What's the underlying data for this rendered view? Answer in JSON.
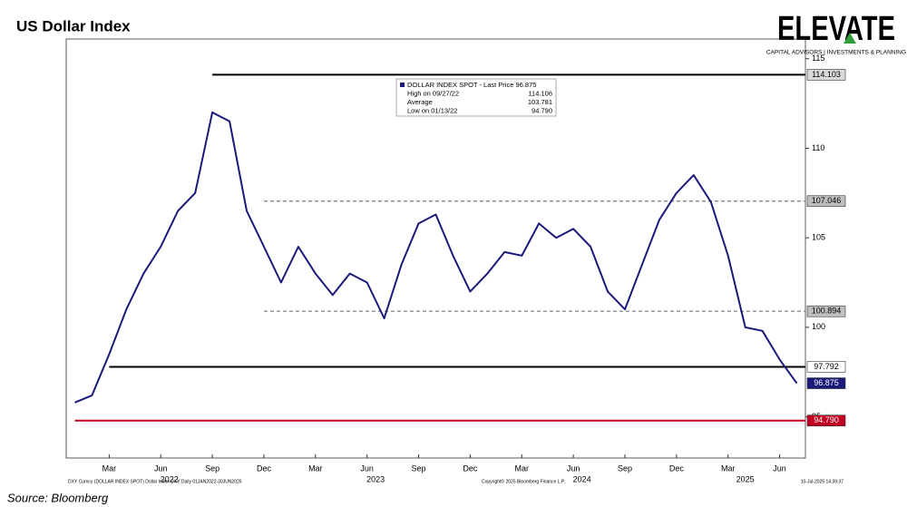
{
  "chart_data": {
    "type": "line",
    "title": "US Dollar Index",
    "source": "Source: Bloomberg",
    "logo": {
      "name": "ELEVATE",
      "tagline": "CAPITAL ADVISORS | INVESTMENTS & PLANNING"
    },
    "footer": {
      "left": "DXY Curncy (DOLLAR INDEX SPOT) Dollar Index DXY  Daily 01JAN2022-30JUN2025",
      "center": "Copyright© 2025 Bloomberg Finance L.P.",
      "right": "10-Jul-2025 14:39:37"
    },
    "legend_box": {
      "rows": [
        {
          "label": "DOLLAR INDEX SPOT - Last Price 96.875"
        },
        {
          "label": "High on 09/27/22",
          "value": "114.106"
        },
        {
          "label": "Average",
          "value": "103.781"
        },
        {
          "label": "Low on 01/13/22",
          "value": "94.790"
        }
      ]
    },
    "x": [
      "2022-01",
      "2022-02",
      "2022-03",
      "2022-04",
      "2022-05",
      "2022-06",
      "2022-07",
      "2022-08",
      "2022-09",
      "2022-10",
      "2022-11",
      "2022-12",
      "2023-01",
      "2023-02",
      "2023-03",
      "2023-04",
      "2023-05",
      "2023-06",
      "2023-07",
      "2023-08",
      "2023-09",
      "2023-10",
      "2023-11",
      "2023-12",
      "2024-01",
      "2024-02",
      "2024-03",
      "2024-04",
      "2024-05",
      "2024-06",
      "2024-07",
      "2024-08",
      "2024-09",
      "2024-10",
      "2024-11",
      "2024-12",
      "2025-01",
      "2025-02",
      "2025-03",
      "2025-04",
      "2025-05",
      "2025-06",
      "2025-07"
    ],
    "series": [
      {
        "name": "DOLLAR INDEX SPOT",
        "color": "#1a1a7a",
        "values": [
          95.8,
          96.2,
          98.5,
          101,
          103,
          104.5,
          106.5,
          107.5,
          112,
          111.5,
          106.5,
          104.5,
          102.5,
          104.5,
          103,
          101.8,
          103,
          102.5,
          100.5,
          103.5,
          105.8,
          106.3,
          104,
          102,
          103,
          104.2,
          104,
          105.8,
          105,
          105.5,
          104.5,
          102,
          101,
          103.5,
          106,
          107.5,
          108.5,
          107,
          104,
          100,
          99.8,
          98.2,
          96.875
        ]
      }
    ],
    "ylim": [
      92.7,
      116.1
    ],
    "yticks": [
      95,
      100,
      105,
      110,
      115
    ],
    "xtick_labels": [
      {
        "x": "2022-03",
        "label": "Mar"
      },
      {
        "x": "2022-06",
        "label": "Jun"
      },
      {
        "x": "2022-09",
        "label": "Sep"
      },
      {
        "x": "2022-12",
        "label": "Dec"
      },
      {
        "x": "2023-03",
        "label": "Mar"
      },
      {
        "x": "2023-06",
        "label": "Jun"
      },
      {
        "x": "2023-09",
        "label": "Sep"
      },
      {
        "x": "2023-12",
        "label": "Dec"
      },
      {
        "x": "2024-03",
        "label": "Mar"
      },
      {
        "x": "2024-06",
        "label": "Jun"
      },
      {
        "x": "2024-09",
        "label": "Sep"
      },
      {
        "x": "2024-12",
        "label": "Dec"
      },
      {
        "x": "2025-03",
        "label": "Mar"
      },
      {
        "x": "2025-06",
        "label": "Jun"
      }
    ],
    "year_labels": [
      "2022",
      "2023",
      "2024",
      "2025"
    ],
    "reference_lines": [
      {
        "value": 114.103,
        "label": "114.103",
        "from": "2022-09",
        "color": "#000000",
        "style": "solid",
        "box": "#d9d9d9",
        "text_color": "#000000"
      },
      {
        "value": 107.046,
        "label": "107.046",
        "from": "2022-12",
        "color": "#8c8c8c",
        "style": "dashed",
        "box": "#bfbfbf",
        "text_color": "#000000"
      },
      {
        "value": 100.894,
        "label": "100.894",
        "from": "2022-12",
        "color": "#8c8c8c",
        "style": "dashed",
        "box": "#bfbfbf",
        "text_color": "#000000"
      },
      {
        "value": 97.792,
        "label": "97.792",
        "from": "2022-03",
        "color": "#000000",
        "style": "solid",
        "box": "#ffffff",
        "text_color": "#000000"
      },
      {
        "value": 94.79,
        "label": "94.790",
        "from": "2022-01",
        "color": "#c00020",
        "style": "solid",
        "box": "#c00020",
        "text_color": "#ffffff"
      }
    ],
    "last_label": {
      "value": 96.875,
      "label": "96.875",
      "box": "#1a1a7a",
      "text_color": "#ffffff"
    }
  }
}
